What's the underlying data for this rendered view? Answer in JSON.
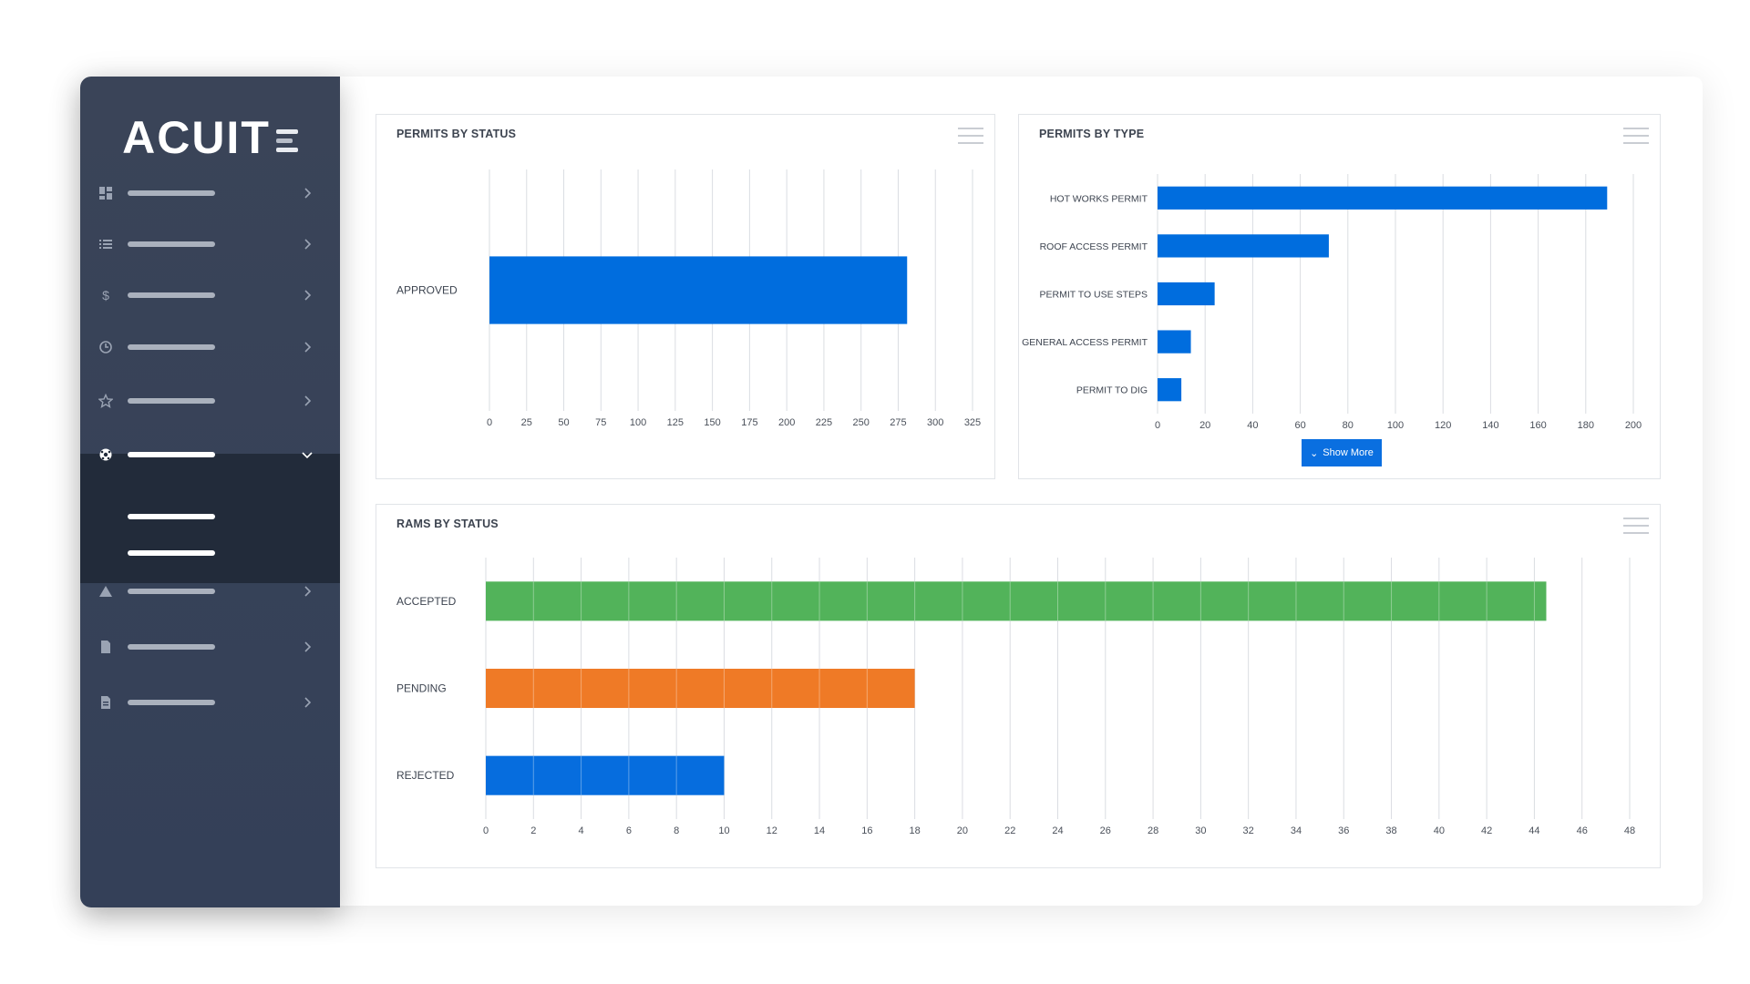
{
  "app": {
    "brand": "ACUIT",
    "nav_icons": [
      "dashboard-icon",
      "list-icon",
      "dollar-icon",
      "clock-icon",
      "star-icon",
      "soccer-ball-icon",
      "warning-icon",
      "file-icon",
      "document-icon"
    ]
  },
  "panels": {
    "status": {
      "title": "PERMITS BY STATUS",
      "chart_data": {
        "type": "bar",
        "orientation": "horizontal",
        "categories": [
          "APPROVED"
        ],
        "values": [
          281
        ],
        "xlim": [
          0,
          325
        ],
        "ticks": [
          0,
          25,
          50,
          75,
          100,
          125,
          150,
          175,
          200,
          225,
          250,
          275,
          300,
          325
        ],
        "color": "#006dde",
        "grid": true
      }
    },
    "type": {
      "title": "PERMITS BY TYPE",
      "show_more": "Show More",
      "chart_data": {
        "type": "bar",
        "orientation": "horizontal",
        "categories": [
          "HOT WORKS PERMIT",
          "ROOF ACCESS PERMIT",
          "PERMIT TO USE STEPS",
          "GENERAL ACCESS PERMIT",
          "PERMIT TO DIG"
        ],
        "values": [
          189,
          72,
          24,
          14,
          10
        ],
        "xlim": [
          0,
          200
        ],
        "ticks": [
          0,
          20,
          40,
          60,
          80,
          100,
          120,
          140,
          160,
          180,
          200
        ],
        "color": "#006dde",
        "grid": true
      }
    },
    "rams": {
      "title": "RAMS BY STATUS",
      "chart_data": {
        "type": "bar",
        "orientation": "horizontal",
        "categories": [
          "ACCEPTED",
          "PENDING",
          "REJECTED"
        ],
        "values": [
          44.5,
          18,
          10
        ],
        "colors": [
          "#52b35a",
          "#ef7a26",
          "#066dde"
        ],
        "xlim": [
          0,
          48
        ],
        "ticks": [
          0,
          2,
          4,
          6,
          8,
          10,
          12,
          14,
          16,
          18,
          20,
          22,
          24,
          26,
          28,
          30,
          32,
          34,
          36,
          38,
          40,
          42,
          44,
          46,
          48
        ],
        "grid": true
      }
    }
  }
}
